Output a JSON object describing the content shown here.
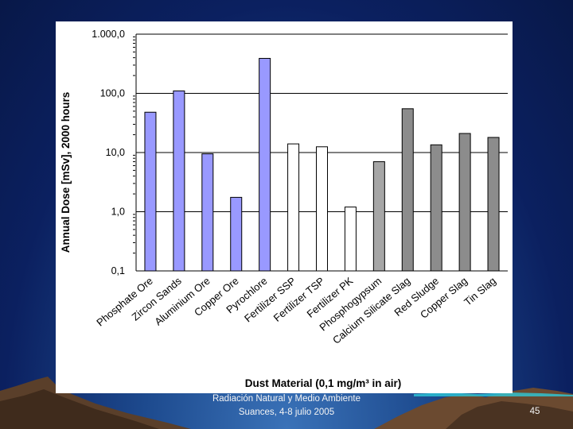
{
  "footer": {
    "line1": "Radiación Natural y Medio Ambiente",
    "line2": "Suances, 4-8 julio 2005",
    "page_number": "45"
  },
  "colors": {
    "background": "#0b2060",
    "blue_bars": "#9999ff",
    "white_bars": "#ffffff",
    "light_gray_bar": "#a6a6a6",
    "gray_bars": "#8c8c8c",
    "bar_outline": "#000000"
  },
  "chart_data": {
    "type": "bar",
    "title": "",
    "xlabel": "Dust Material (0,1 mg/m³ in air)",
    "ylabel": "Annual Dose [mSv], 2000 hours",
    "yscale": "log",
    "ylim": [
      0.1,
      1000
    ],
    "ytick_labels": [
      "1.000,0",
      "100,0",
      "10,0",
      "1,0",
      "0,1"
    ],
    "ytick_values": [
      1000,
      100,
      10,
      1,
      0.1
    ],
    "grid": "horizontal major gridlines",
    "legend": "none",
    "categories": [
      "Phosphate Ore",
      "Zircon Sands",
      "Aluminium Ore",
      "Copper Ore",
      "Pyrochlore",
      "Fertilizer SSP",
      "Fertilizer TSP",
      "Fertilizer PK",
      "Phosphogypsum",
      "Calcium Silicate Slag",
      "Red Sludge",
      "Copper Slag",
      "Tin Slag"
    ],
    "values": [
      48,
      110,
      9.5,
      1.75,
      390,
      14,
      12.5,
      1.2,
      7,
      55,
      13.5,
      21,
      18
    ],
    "bar_colors": [
      "#9999ff",
      "#9999ff",
      "#9999ff",
      "#9999ff",
      "#9999ff",
      "#ffffff",
      "#ffffff",
      "#ffffff",
      "#a6a6a6",
      "#8c8c8c",
      "#8c8c8c",
      "#8c8c8c",
      "#8c8c8c"
    ]
  }
}
